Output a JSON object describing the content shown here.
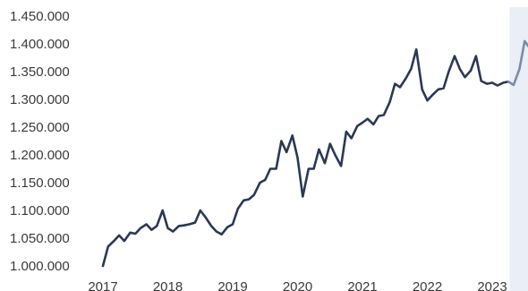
{
  "chart_data": {
    "type": "line",
    "title": "",
    "xlabel": "",
    "ylabel": "",
    "x_ticks": [
      "2017",
      "2018",
      "2019",
      "2020",
      "2021",
      "2022",
      "2023"
    ],
    "y_ticks": [
      "1.000.000",
      "1.050.000",
      "1.100.000",
      "1.150.000",
      "1.200.000",
      "1.250.000",
      "1.300.000",
      "1.350.000",
      "1.400.000",
      "1.450.000"
    ],
    "ylim": [
      1000000,
      1450000
    ],
    "xlim": [
      2017.0,
      2023.65
    ],
    "grid": false,
    "legend": "none",
    "series": [
      {
        "x": [
          2017.0,
          2017.08,
          2017.17,
          2017.25,
          2017.33,
          2017.42,
          2017.5,
          2017.58,
          2017.67,
          2017.75,
          2017.83,
          2017.92,
          2018.0,
          2018.08,
          2018.17,
          2018.25,
          2018.33,
          2018.42,
          2018.5,
          2018.58,
          2018.67,
          2018.75,
          2018.83,
          2018.92,
          2019.0,
          2019.08,
          2019.17,
          2019.25,
          2019.33,
          2019.42,
          2019.5,
          2019.58,
          2019.67,
          2019.75,
          2019.83,
          2019.92,
          2020.0,
          2020.08,
          2020.17,
          2020.25,
          2020.33,
          2020.42,
          2020.5,
          2020.58,
          2020.67,
          2020.75,
          2020.83,
          2020.92,
          2021.0,
          2021.08,
          2021.17,
          2021.25,
          2021.33,
          2021.42,
          2021.5,
          2021.58,
          2021.67,
          2021.75,
          2021.83,
          2021.92,
          2022.0,
          2022.08,
          2022.17,
          2022.25,
          2022.33,
          2022.42,
          2022.5,
          2022.58,
          2022.67,
          2022.75,
          2022.83,
          2022.92,
          2023.0,
          2023.08,
          2023.17,
          2023.25
        ],
        "values": [
          1000000,
          1035000,
          1045000,
          1055000,
          1045000,
          1060000,
          1058000,
          1068000,
          1075000,
          1065000,
          1072000,
          1100000,
          1068000,
          1062000,
          1072000,
          1073000,
          1075000,
          1078000,
          1100000,
          1088000,
          1072000,
          1062000,
          1057000,
          1070000,
          1075000,
          1103000,
          1118000,
          1120000,
          1128000,
          1150000,
          1155000,
          1175000,
          1175000,
          1225000,
          1205000,
          1235000,
          1195000,
          1125000,
          1175000,
          1175000,
          1210000,
          1185000,
          1220000,
          1200000,
          1180000,
          1242000,
          1230000,
          1252000,
          1258000,
          1265000,
          1255000,
          1270000,
          1272000,
          1295000,
          1328000,
          1322000,
          1338000,
          1355000,
          1390000,
          1318000,
          1298000,
          1308000,
          1318000,
          1320000,
          1350000,
          1378000,
          1355000,
          1340000,
          1352000,
          1378000,
          1333000,
          1328000,
          1330000,
          1325000,
          1330000,
          1332000
        ],
        "color": "#2b3856"
      },
      {
        "x": [
          2023.25,
          2023.33,
          2023.42,
          2023.5,
          2023.58,
          2023.65
        ],
        "values": [
          1332000,
          1326000,
          1355000,
          1405000,
          1392000,
          1375000
        ],
        "color": "#7d8aa3"
      }
    ],
    "forecast_shade": {
      "from": 2023.25,
      "to": 2023.65,
      "color": "#e9eef7"
    }
  }
}
